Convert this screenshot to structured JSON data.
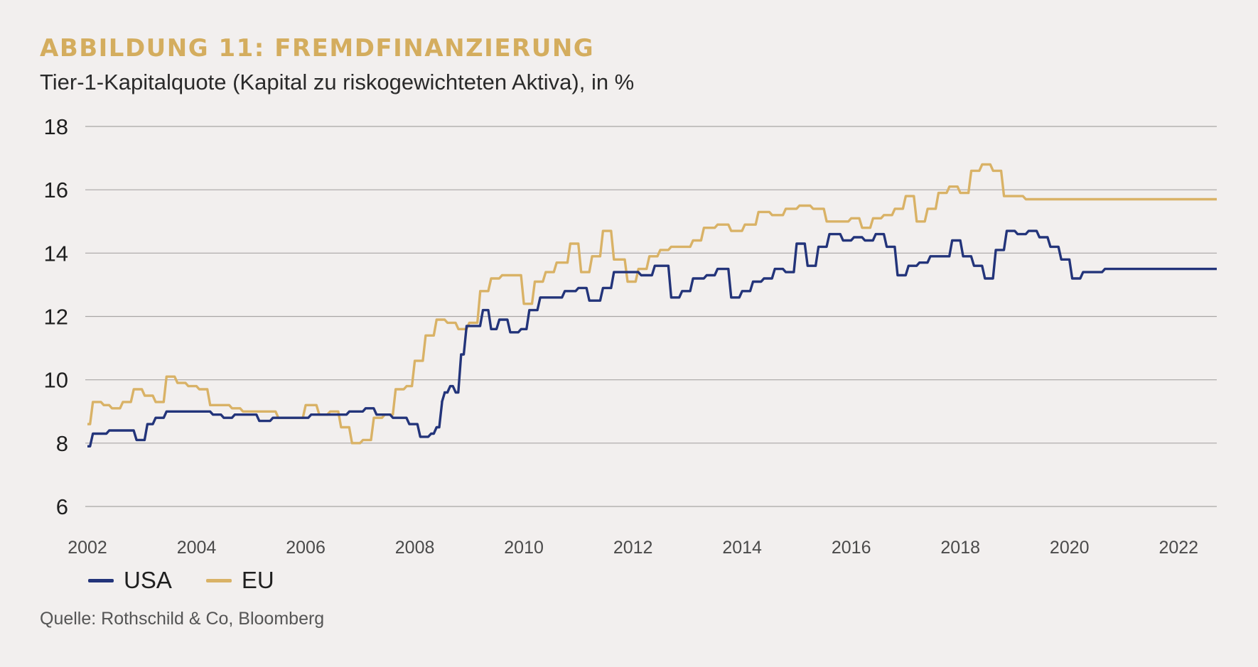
{
  "title": "ABBILDUNG 11: FREMDFINANZIERUNG",
  "subtitle": "Tier-1-Kapitalquote (Kapital zu riskogewichteten Aktiva), in %",
  "source": "Quelle: Rothschild & Co, Bloomberg",
  "colors": {
    "usa": "#23347a",
    "eu": "#d9b266",
    "grid": "#a9a6a5",
    "background": "#f2efee"
  },
  "chart_data": {
    "type": "line",
    "title": "",
    "xlabel": "",
    "ylabel": "",
    "xlim": [
      2002,
      2022.7
    ],
    "ylim": [
      6,
      18
    ],
    "yticks": [
      6,
      8,
      10,
      12,
      14,
      16,
      18
    ],
    "xticks": [
      2002,
      2004,
      2006,
      2008,
      2010,
      2012,
      2014,
      2016,
      2018,
      2020,
      2022
    ],
    "grid": true,
    "legend": "bottom-left",
    "step": true,
    "series": [
      {
        "name": "USA",
        "color": "#23347a",
        "x": [
          2002.0,
          2002.1,
          2002.2,
          2002.4,
          2002.5,
          2002.75,
          2002.9,
          2003.1,
          2003.25,
          2003.45,
          2003.6,
          2003.9,
          2004.1,
          2004.3,
          2004.5,
          2004.7,
          2004.9,
          2005.15,
          2005.4,
          2005.6,
          2005.8,
          2006.1,
          2006.3,
          2006.55,
          2006.8,
          2007.1,
          2007.3,
          2007.6,
          2007.9,
          2008.1,
          2008.3,
          2008.4,
          2008.5,
          2008.55,
          2008.6,
          2008.65,
          2008.75,
          2008.85,
          2008.95,
          2009.1,
          2009.25,
          2009.4,
          2009.55,
          2009.75,
          2009.95,
          2010.1,
          2010.3,
          2010.55,
          2010.75,
          2011.0,
          2011.2,
          2011.45,
          2011.65,
          2011.9,
          2012.15,
          2012.4,
          2012.7,
          2012.9,
          2013.1,
          2013.35,
          2013.55,
          2013.8,
          2014.0,
          2014.2,
          2014.4,
          2014.6,
          2014.8,
          2015.0,
          2015.2,
          2015.4,
          2015.6,
          2015.85,
          2016.05,
          2016.25,
          2016.45,
          2016.65,
          2016.85,
          2017.05,
          2017.25,
          2017.45,
          2017.65,
          2017.85,
          2018.05,
          2018.25,
          2018.45,
          2018.65,
          2018.85,
          2019.05,
          2019.25,
          2019.45,
          2019.65,
          2019.85,
          2020.05,
          2020.25,
          2020.45,
          2020.65,
          2020.85,
          2021.05,
          2021.25,
          2021.45,
          2021.65,
          2021.85,
          2022.1,
          2022.3,
          2022.5,
          2022.7
        ],
        "values": [
          7.9,
          8.3,
          8.3,
          8.4,
          8.4,
          8.4,
          8.1,
          8.6,
          8.8,
          9.0,
          9.0,
          9.0,
          9.0,
          8.9,
          8.8,
          8.9,
          8.9,
          8.7,
          8.8,
          8.8,
          8.8,
          8.9,
          8.9,
          8.9,
          9.0,
          9.1,
          8.9,
          8.8,
          8.6,
          8.2,
          8.3,
          8.5,
          9.3,
          9.6,
          9.6,
          9.8,
          9.6,
          10.8,
          11.7,
          11.7,
          12.2,
          11.6,
          11.9,
          11.5,
          11.6,
          12.2,
          12.6,
          12.6,
          12.8,
          12.9,
          12.5,
          12.9,
          13.4,
          13.4,
          13.3,
          13.6,
          12.6,
          12.8,
          13.2,
          13.3,
          13.5,
          12.6,
          12.8,
          13.1,
          13.2,
          13.5,
          13.4,
          14.3,
          13.6,
          14.2,
          14.6,
          14.4,
          14.5,
          14.4,
          14.6,
          14.2,
          13.3,
          13.6,
          13.7,
          13.9,
          13.9,
          14.4,
          13.9,
          13.6,
          13.2,
          14.1,
          14.7,
          14.6,
          14.7,
          14.5,
          14.2,
          13.8,
          13.2,
          13.4,
          13.4,
          13.5,
          13.5,
          13.5,
          13.5,
          13.5,
          13.5,
          13.5,
          13.5,
          13.5,
          13.5,
          13.5
        ]
      },
      {
        "name": "EU",
        "color": "#d9b266",
        "x": [
          2002.0,
          2002.1,
          2002.3,
          2002.45,
          2002.65,
          2002.85,
          2003.05,
          2003.25,
          2003.45,
          2003.65,
          2003.85,
          2004.05,
          2004.25,
          2004.45,
          2004.65,
          2004.85,
          2005.05,
          2005.3,
          2005.5,
          2005.75,
          2006.0,
          2006.25,
          2006.45,
          2006.65,
          2006.85,
          2007.05,
          2007.25,
          2007.45,
          2007.65,
          2007.85,
          2008.0,
          2008.2,
          2008.4,
          2008.6,
          2008.8,
          2009.0,
          2009.2,
          2009.4,
          2009.6,
          2009.8,
          2010.0,
          2010.2,
          2010.4,
          2010.6,
          2010.85,
          2011.05,
          2011.25,
          2011.45,
          2011.65,
          2011.9,
          2012.1,
          2012.3,
          2012.5,
          2012.7,
          2012.9,
          2013.1,
          2013.3,
          2013.55,
          2013.8,
          2014.05,
          2014.3,
          2014.55,
          2014.8,
          2015.05,
          2015.3,
          2015.55,
          2015.8,
          2016.0,
          2016.2,
          2016.4,
          2016.6,
          2016.8,
          2017.0,
          2017.2,
          2017.4,
          2017.6,
          2017.8,
          2018.0,
          2018.2,
          2018.4,
          2018.6,
          2018.8,
          2019.0,
          2019.2,
          2019.4,
          2019.6,
          2019.8,
          2020.0,
          2020.2,
          2020.4,
          2020.6,
          2020.8,
          2021.0,
          2021.2,
          2021.4,
          2021.6,
          2021.8,
          2022.0,
          2022.2,
          2022.5,
          2022.7
        ],
        "values": [
          8.6,
          9.3,
          9.2,
          9.1,
          9.3,
          9.7,
          9.5,
          9.3,
          10.1,
          9.9,
          9.8,
          9.7,
          9.2,
          9.2,
          9.1,
          9.0,
          9.0,
          9.0,
          8.8,
          8.8,
          9.2,
          8.9,
          9.0,
          8.5,
          8.0,
          8.1,
          8.8,
          8.9,
          9.7,
          9.8,
          10.6,
          11.4,
          11.9,
          11.8,
          11.6,
          11.8,
          12.8,
          13.2,
          13.3,
          13.3,
          12.4,
          13.1,
          13.4,
          13.7,
          14.3,
          13.4,
          13.9,
          14.7,
          13.8,
          13.1,
          13.5,
          13.9,
          14.1,
          14.2,
          14.2,
          14.4,
          14.8,
          14.9,
          14.7,
          14.9,
          15.3,
          15.2,
          15.4,
          15.5,
          15.4,
          15.0,
          15.0,
          15.1,
          14.8,
          15.1,
          15.2,
          15.4,
          15.8,
          15.0,
          15.4,
          15.9,
          16.1,
          15.9,
          16.6,
          16.8,
          16.6,
          15.8,
          15.8,
          15.7,
          15.7,
          15.7,
          15.7,
          15.7,
          15.7,
          15.7,
          15.7,
          15.7,
          15.7,
          15.7,
          15.7,
          15.7,
          15.7,
          15.7,
          15.7,
          15.7,
          15.7
        ]
      }
    ]
  }
}
